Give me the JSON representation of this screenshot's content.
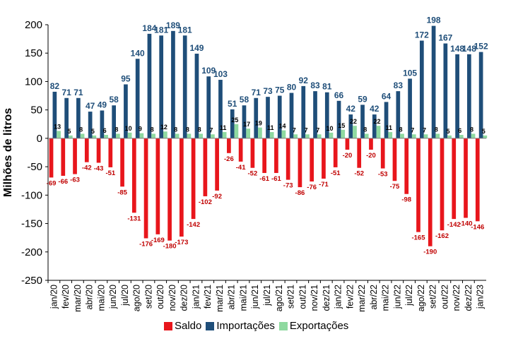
{
  "chart_data": {
    "type": "bar",
    "title": "",
    "xlabel": "",
    "ylabel": "Milhões de litros",
    "ylim": [
      -250,
      200
    ],
    "yticks": [
      -250,
      -200,
      -150,
      -100,
      -50,
      0,
      50,
      100,
      150,
      200
    ],
    "grid": false,
    "legend_position": "bottom",
    "categories": [
      "jan/20",
      "fev/20",
      "mar/20",
      "abr/20",
      "mai/20",
      "jun/20",
      "jul/20",
      "ago/20",
      "set/20",
      "out/20",
      "nov/20",
      "dez/20",
      "jan/21",
      "fev/21",
      "mar/21",
      "abr/21",
      "mai/21",
      "jun/21",
      "jul/21",
      "ago/21",
      "set/21",
      "out/21",
      "nov/21",
      "dez/21",
      "jan/22",
      "fev/22",
      "mar/22",
      "abr/22",
      "mai/22",
      "jun/22",
      "jul/22",
      "ago/22",
      "set/22",
      "out/22",
      "nov/22",
      "dez/22",
      "jan/23"
    ],
    "series": [
      {
        "name": "Saldo",
        "color": "#e8161c",
        "values": [
          -69,
          -66,
          -63,
          -42,
          -43,
          -51,
          -85,
          -131,
          -176,
          -169,
          -180,
          -173,
          -142,
          -102,
          -92,
          -26,
          -41,
          -52,
          -61,
          -61,
          -73,
          -86,
          -76,
          -71,
          -51,
          -20,
          -52,
          -20,
          -53,
          -75,
          -98,
          -165,
          -190,
          -162,
          -142,
          -140,
          -146
        ]
      },
      {
        "name": "Importações",
        "color": "#1f4e79",
        "values": [
          82,
          71,
          71,
          47,
          49,
          58,
          95,
          140,
          184,
          181,
          189,
          181,
          149,
          109,
          103,
          51,
          58,
          71,
          73,
          75,
          80,
          92,
          83,
          81,
          66,
          42,
          59,
          42,
          64,
          83,
          105,
          172,
          198,
          167,
          148,
          148,
          152
        ]
      },
      {
        "name": "Exportações",
        "color": "#8fd9a0",
        "values": [
          13,
          5,
          8,
          5,
          6,
          8,
          10,
          9,
          8,
          12,
          8,
          8,
          8,
          7,
          11,
          25,
          17,
          19,
          11,
          14,
          7,
          7,
          7,
          10,
          15,
          22,
          8,
          22,
          11,
          8,
          7,
          7,
          8,
          5,
          6,
          8,
          5
        ]
      }
    ]
  }
}
